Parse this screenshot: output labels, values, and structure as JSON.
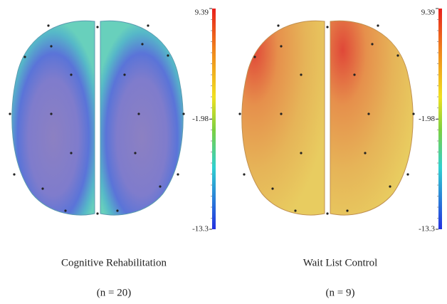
{
  "panels": [
    {
      "caption": "Cognitive Rehabilitation",
      "n": "(n = 20)",
      "colorbar": {
        "ticks": [
          9.39,
          -1.98,
          -13.3
        ]
      }
    },
    {
      "caption": "Wait List Control",
      "n": "(n = 9)",
      "colorbar": {
        "ticks": [
          9.39,
          -1.98,
          -13.3
        ]
      }
    }
  ]
}
